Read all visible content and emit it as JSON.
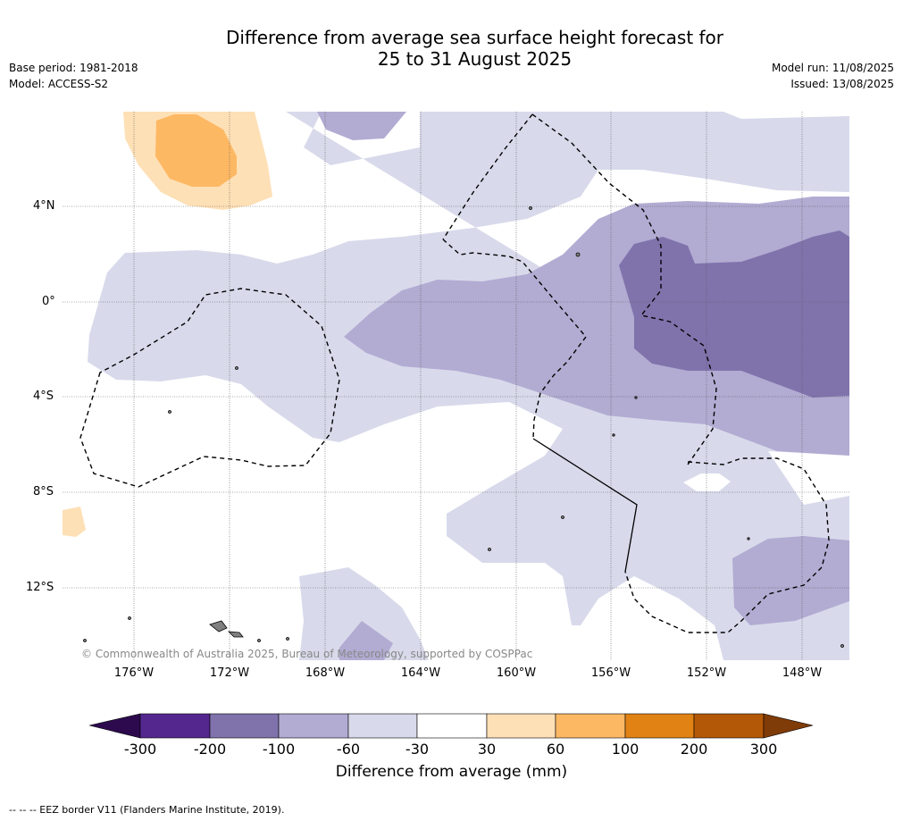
{
  "title_line1": "Difference from average sea surface height forecast for",
  "title_line2": "25 to 31 August 2025",
  "base_period": "Base period: 1981-2018",
  "model": "Model: ACCESS-S2",
  "model_run": "Model run: 11/08/2025",
  "issued": "Issued: 13/08/2025",
  "lat_ticks": [
    "4°N",
    "0°",
    "4°S",
    "8°S",
    "12°S"
  ],
  "lon_ticks": [
    "176°W",
    "172°W",
    "168°W",
    "164°W",
    "160°W",
    "156°W",
    "152°W",
    "148°W"
  ],
  "copyright": "© Commonwealth of Australia 2025, Bureau of Meteorology, supported by COSPPac",
  "colorbar": {
    "labels": [
      "-300",
      "-200",
      "-100",
      "-60",
      "-30",
      "30",
      "60",
      "100",
      "200",
      "300"
    ],
    "colors": {
      "below": "#2d0a4e",
      "-300_-200": "#54278f",
      "-200_-100": "#8073ac",
      "-100_-60": "#b2abd2",
      "-60_-30": "#d8daeb",
      "-30_30": "#ffffff",
      "30_60": "#fee0b6",
      "60_100": "#fdb863",
      "100_200": "#e08214",
      "200_300": "#b35806",
      "above": "#7f3b08"
    },
    "title": "Difference from average (mm)"
  },
  "footnote": "--  --  -- EEZ border V11 (Flanders Marine Institute, 2019)."
}
